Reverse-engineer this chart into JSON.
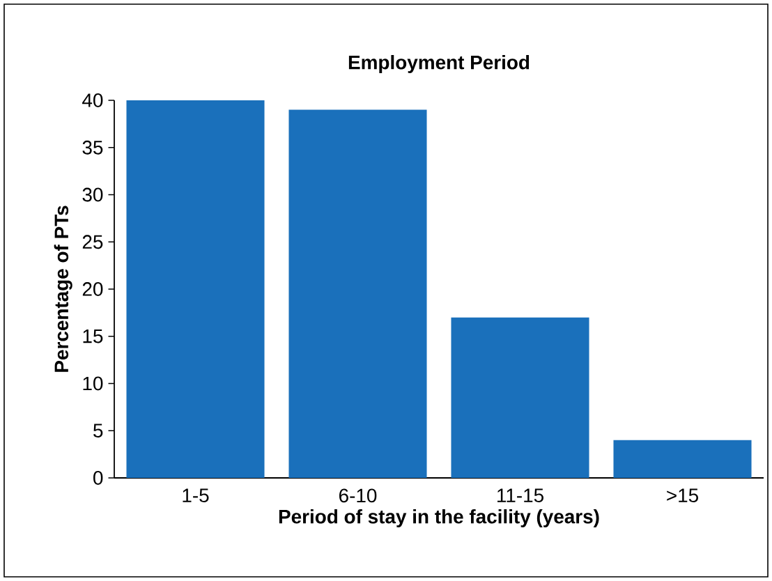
{
  "chart_data": {
    "type": "bar",
    "title": "Employment Period",
    "xlabel": "Period of stay in the facility (years)",
    "ylabel": "Percentage of PTs",
    "categories": [
      "1-5",
      "6-10",
      "11-15",
      ">15"
    ],
    "values": [
      40,
      39,
      17,
      4
    ],
    "color": "#1a70bb",
    "ylim": [
      0,
      40
    ],
    "yticks": [
      0,
      5,
      10,
      15,
      20,
      25,
      30,
      35,
      40
    ]
  }
}
